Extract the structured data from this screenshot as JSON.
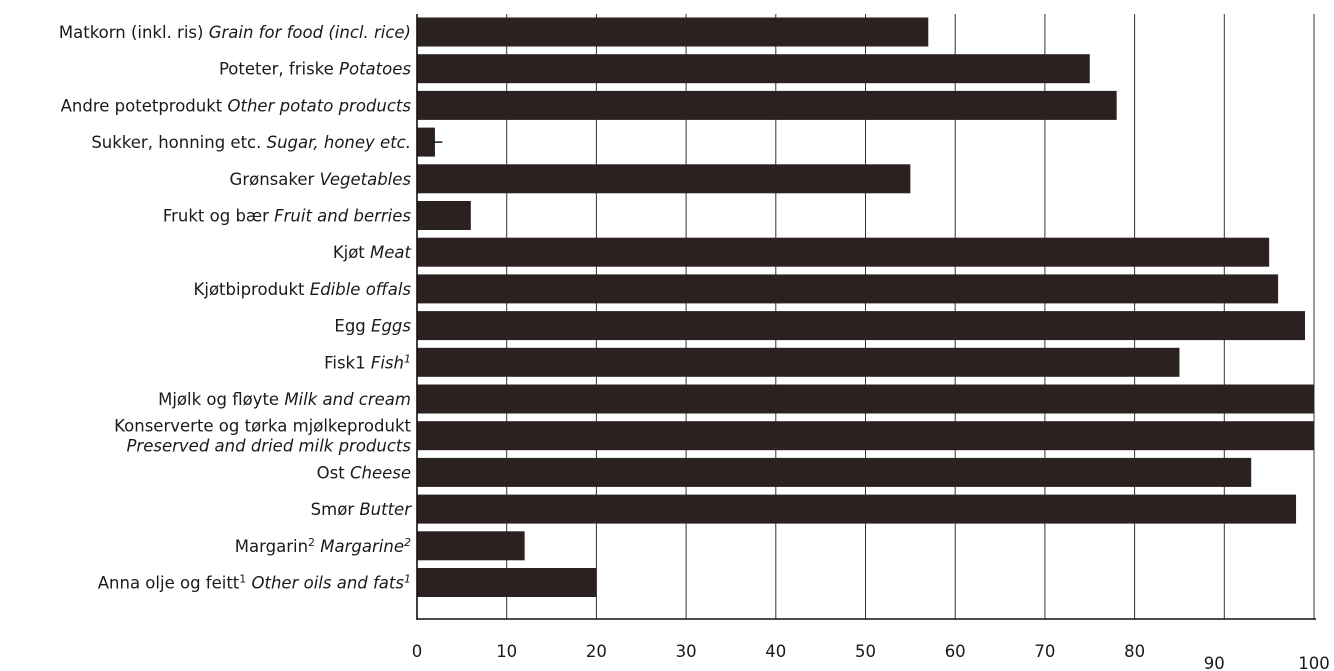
{
  "chart_data": {
    "type": "bar",
    "orientation": "horizontal",
    "title": "",
    "xlabel": "",
    "ylabel": "",
    "xlim": [
      0,
      100
    ],
    "x_ticks": [
      "0",
      "10",
      "20",
      "30",
      "40",
      "50",
      "60",
      "70",
      "80",
      "90",
      "100"
    ],
    "grid": "vertical",
    "bar_color": "#2b2121",
    "categories": [
      {
        "lines": [
          [
            {
              "t": "Matkorn (inkl. ris) "
            },
            {
              "t": "Grain for food (incl. rice)",
              "i": true
            }
          ]
        ],
        "value": 57
      },
      {
        "lines": [
          [
            {
              "t": "Poteter, friske  "
            },
            {
              "t": "Potatoes",
              "i": true
            }
          ]
        ],
        "value": 75
      },
      {
        "lines": [
          [
            {
              "t": "Andre potetprodukt "
            },
            {
              "t": "Other potato products",
              "i": true
            }
          ]
        ],
        "value": 78
      },
      {
        "lines": [
          [
            {
              "t": "Sukker, honning etc. "
            },
            {
              "t": "Sugar, honey etc.",
              "i": true
            }
          ]
        ],
        "value": 2,
        "error": 0.5
      },
      {
        "lines": [
          [
            {
              "t": "Grønsaker  "
            },
            {
              "t": "Vegetables",
              "i": true
            }
          ]
        ],
        "value": 55
      },
      {
        "lines": [
          [
            {
              "t": "Frukt og bær  "
            },
            {
              "t": "Fruit and berries",
              "i": true
            }
          ]
        ],
        "value": 6
      },
      {
        "lines": [
          [
            {
              "t": "Kjøt  "
            },
            {
              "t": "Meat",
              "i": true
            }
          ]
        ],
        "value": 95
      },
      {
        "lines": [
          [
            {
              "t": "Kjøtbiprodukt  "
            },
            {
              "t": "Edible offals",
              "i": true
            }
          ]
        ],
        "value": 96
      },
      {
        "lines": [
          [
            {
              "t": "Egg  "
            },
            {
              "t": "Eggs",
              "i": true
            }
          ]
        ],
        "value": 99
      },
      {
        "lines": [
          [
            {
              "t": "Fisk1  "
            },
            {
              "t": "Fish",
              "i": true
            },
            {
              "t": "1",
              "sup": true,
              "i": true
            }
          ]
        ],
        "value": 85
      },
      {
        "lines": [
          [
            {
              "t": "Mjølk og fløyte "
            },
            {
              "t": "Milk and cream",
              "i": true
            }
          ]
        ],
        "value": 100
      },
      {
        "lines": [
          [
            {
              "t": "Konserverte og tørka mjølkeprodukt"
            }
          ],
          [
            {
              "t": "Preserved and dried milk products",
              "i": true
            }
          ]
        ],
        "value": 100
      },
      {
        "lines": [
          [
            {
              "t": "Ost  "
            },
            {
              "t": "Cheese",
              "i": true
            }
          ]
        ],
        "value": 93
      },
      {
        "lines": [
          [
            {
              "t": "Smør  "
            },
            {
              "t": "Butter",
              "i": true
            }
          ]
        ],
        "value": 98
      },
      {
        "lines": [
          [
            {
              "t": "Margarin"
            },
            {
              "t": "2",
              "sup": true
            },
            {
              "t": "  "
            },
            {
              "t": "Margarine",
              "i": true
            },
            {
              "t": "2",
              "sup": true,
              "i": true
            }
          ]
        ],
        "value": 12
      },
      {
        "lines": [
          [
            {
              "t": "Anna olje og feitt"
            },
            {
              "t": "1",
              "sup": true
            },
            {
              "t": "  "
            },
            {
              "t": "Other oils and fats",
              "i": true
            },
            {
              "t": "1",
              "sup": true,
              "i": true
            }
          ]
        ],
        "value": 20
      }
    ]
  }
}
